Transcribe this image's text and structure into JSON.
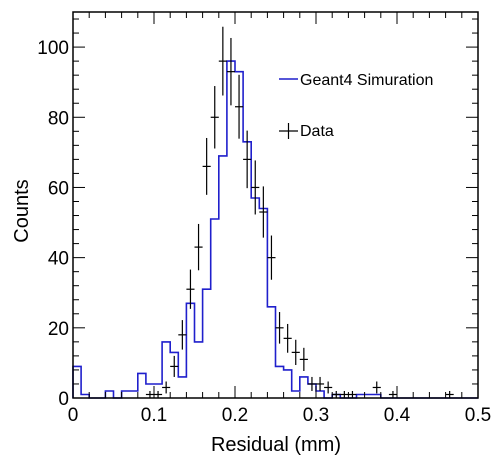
{
  "chart_data": {
    "type": "histogram",
    "title": "",
    "xlabel": "Residual (mm)",
    "ylabel": "Counts",
    "xlim": [
      0,
      0.5
    ],
    "ylim": [
      0,
      110
    ],
    "xticks": [
      0,
      0.1,
      0.2,
      0.3,
      0.4,
      0.5
    ],
    "xtick_labels": [
      "0",
      "0.1",
      "0.2",
      "0.3",
      "0.4",
      "0.5"
    ],
    "yticks": [
      0,
      20,
      40,
      60,
      80,
      100
    ],
    "ytick_labels": [
      "0",
      "20",
      "40",
      "60",
      "80",
      "100"
    ],
    "bin_width": 0.01,
    "legend_placement": "top-right",
    "grid": false,
    "series": [
      {
        "name": "Geant4 Simuration",
        "kind": "step-histogram",
        "color": "#1f1fcc",
        "bin_edges": [
          0,
          0.01,
          0.02,
          0.03,
          0.04,
          0.05,
          0.06,
          0.07,
          0.08,
          0.09,
          0.1,
          0.11,
          0.12,
          0.13,
          0.14,
          0.15,
          0.16,
          0.17,
          0.18,
          0.19,
          0.2,
          0.21,
          0.22,
          0.23,
          0.24,
          0.25,
          0.26,
          0.27,
          0.28,
          0.29,
          0.3,
          0.31,
          0.32,
          0.33,
          0.34,
          0.35,
          0.36,
          0.37,
          0.38,
          0.39,
          0.4,
          0.41,
          0.42,
          0.43,
          0.44,
          0.45,
          0.46,
          0.47,
          0.48,
          0.49,
          0.5
        ],
        "values": [
          9,
          1,
          0,
          0,
          2,
          0,
          2,
          2,
          7,
          4,
          4,
          16,
          13,
          6,
          27,
          16,
          31,
          51,
          69,
          96,
          93,
          73,
          57,
          54,
          26,
          9,
          8,
          2,
          6,
          4,
          2,
          0,
          1,
          0,
          0,
          1,
          1,
          1,
          0,
          0,
          0,
          0,
          0,
          0,
          0,
          0,
          0,
          0,
          0,
          0
        ]
      },
      {
        "name": "Data",
        "kind": "points-with-errors",
        "color": "#000000",
        "x": [
          0.095,
          0.105,
          0.115,
          0.125,
          0.135,
          0.145,
          0.155,
          0.165,
          0.175,
          0.185,
          0.195,
          0.205,
          0.215,
          0.225,
          0.235,
          0.245,
          0.255,
          0.265,
          0.275,
          0.285,
          0.295,
          0.305,
          0.315,
          0.325,
          0.335,
          0.345,
          0.375,
          0.395,
          0.465
        ],
        "y": [
          1,
          1,
          3,
          9,
          18,
          31,
          43,
          66,
          80,
          96,
          93,
          83,
          68,
          60,
          53,
          40,
          20,
          17,
          13,
          11,
          4,
          4,
          3,
          1,
          1,
          1,
          3,
          1,
          1
        ],
        "errors": [
          1.0,
          1.0,
          1.7,
          3.0,
          4.2,
          5.6,
          6.6,
          8.1,
          8.9,
          9.8,
          9.6,
          9.1,
          8.2,
          7.7,
          7.3,
          6.3,
          4.5,
          4.1,
          3.6,
          3.3,
          2.0,
          2.0,
          1.7,
          1.0,
          1.0,
          1.0,
          1.7,
          1.0,
          1.0
        ]
      }
    ]
  }
}
